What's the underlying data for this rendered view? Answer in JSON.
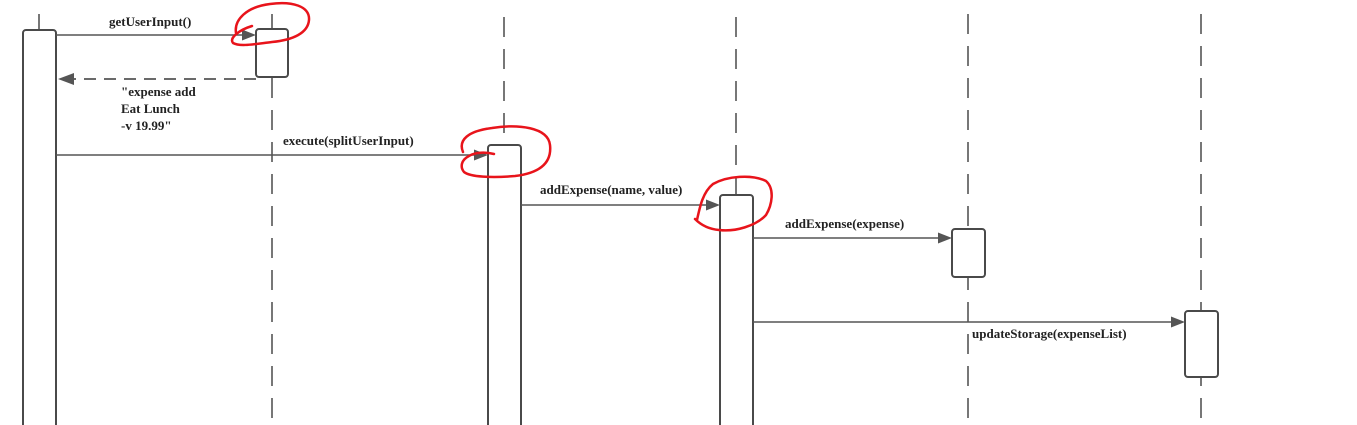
{
  "diagram": {
    "type": "sequence",
    "messages": [
      {
        "label": "getUserInput()"
      },
      {
        "label_lines": [
          "\"expense add",
          "Eat Lunch",
          "-v 19.99\""
        ]
      },
      {
        "label": "execute(splitUserInput)"
      },
      {
        "label": "addExpense(name, value)"
      },
      {
        "label": "addExpense(expense)"
      },
      {
        "label": "updateStorage(expenseList)"
      }
    ],
    "colors": {
      "line": "#4a4a4a",
      "arrow": "#555555",
      "text": "#222222",
      "highlight": "#e8141b",
      "background": "#ffffff"
    }
  }
}
